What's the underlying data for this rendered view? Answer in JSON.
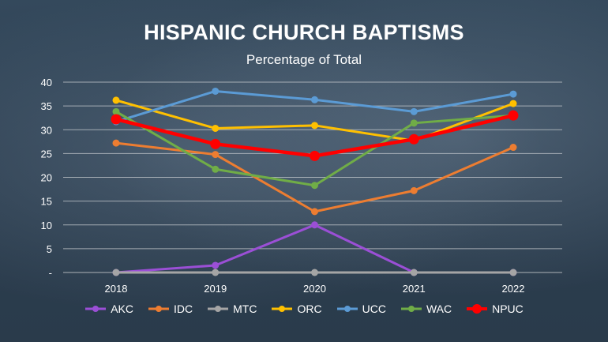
{
  "chart_data": {
    "type": "line",
    "title": "HISPANIC CHURCH BAPTISMS",
    "subtitle": "Percentage of Total",
    "categories": [
      "2018",
      "2019",
      "2020",
      "2021",
      "2022"
    ],
    "ylim": [
      0,
      40
    ],
    "yticks": [
      0,
      5,
      10,
      15,
      20,
      25,
      30,
      35,
      40
    ],
    "ytick_labels": [
      "-",
      "5",
      "10",
      "15",
      "20",
      "25",
      "30",
      "35",
      "40"
    ],
    "grid": true,
    "legend_position": "bottom",
    "series": [
      {
        "name": "AKC",
        "color": "#9b4fd6",
        "values": [
          0,
          1.5,
          10,
          0,
          0
        ]
      },
      {
        "name": "IDC",
        "color": "#ed7d31",
        "values": [
          27.2,
          24.8,
          12.8,
          17.2,
          26.3
        ]
      },
      {
        "name": "MTC",
        "color": "#a5a5a5",
        "values": [
          0,
          0,
          0,
          0,
          0
        ]
      },
      {
        "name": "ORC",
        "color": "#ffc000",
        "values": [
          36.2,
          30.3,
          30.9,
          27.7,
          35.5
        ]
      },
      {
        "name": "UCC",
        "color": "#5b9bd5",
        "values": [
          31.7,
          38.1,
          36.3,
          33.8,
          37.5
        ]
      },
      {
        "name": "WAC",
        "color": "#70ad47",
        "values": [
          33.8,
          21.7,
          18.3,
          31.4,
          33.0
        ]
      },
      {
        "name": "NPUC",
        "color": "#ff0000",
        "values": [
          32.2,
          27.0,
          24.5,
          28.0,
          33.0
        ]
      }
    ]
  }
}
